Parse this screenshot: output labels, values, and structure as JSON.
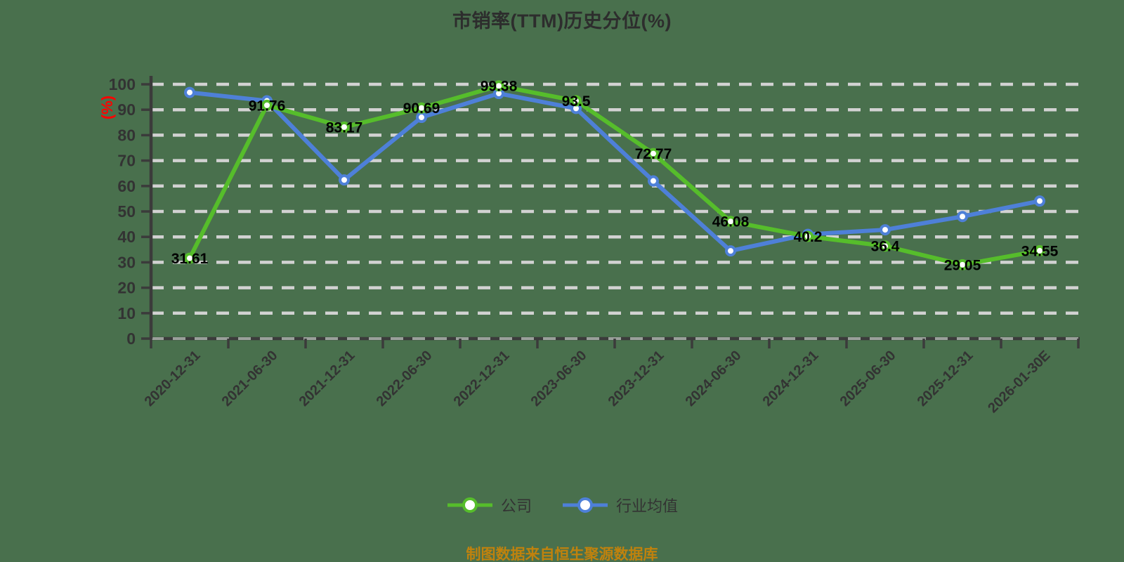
{
  "title": "市销率(TTM)历史分位(%)",
  "y_axis_unit": "(%)",
  "footer_note": "制图数据来自恒生聚源数据库",
  "colors": {
    "company_green": "#56BD2B",
    "industry_blue": "#4E80D8",
    "background_green": "#49704D",
    "gridline_gray": "#D2D2D2",
    "axis_dark": "#3B3B3B",
    "axis_text": "#333333",
    "data_label_black": "#000000",
    "axis_unit_red": "#FF0000",
    "footer_orange": "#C0820D"
  },
  "legend": [
    {
      "label": "公司",
      "color": "#56BD2B"
    },
    {
      "label": "行业均值",
      "color": "#4E80D8"
    }
  ],
  "chart_data": {
    "type": "line",
    "title": "市销率(TTM)历史分位(%)",
    "ylabel": "(%)",
    "ylim": [
      0,
      100
    ],
    "y_ticks": [
      0,
      10,
      20,
      30,
      40,
      50,
      60,
      70,
      80,
      90,
      100
    ],
    "grid": "horizontal dashed",
    "legend_position": "bottom",
    "categories": [
      "2020-12-31",
      "2021-06-30",
      "2021-12-31",
      "2022-06-30",
      "2022-12-31",
      "2023-06-30",
      "2023-12-31",
      "2024-06-30",
      "2024-12-31",
      "2025-06-30",
      "2025-12-31",
      "2026-01-30E"
    ],
    "series": [
      {
        "name": "公司",
        "color": "#56BD2B",
        "show_labels": true,
        "values": [
          31.61,
          91.76,
          83.17,
          90.69,
          99.38,
          93.5,
          72.77,
          46.08,
          40.2,
          36.4,
          29.05,
          34.55
        ],
        "labels": [
          "31.61",
          "91.76",
          "83.17",
          "90.69",
          "99.38",
          "93.5",
          "72.77",
          "46.08",
          "40.2",
          "36.4",
          "29.05",
          "34.55"
        ]
      },
      {
        "name": "行业均值",
        "color": "#4E80D8",
        "show_labels": false,
        "values": [
          96.8,
          93.5,
          62.4,
          87,
          96.4,
          90.5,
          62,
          34.5,
          41,
          42.8,
          48,
          54.1
        ]
      }
    ]
  }
}
